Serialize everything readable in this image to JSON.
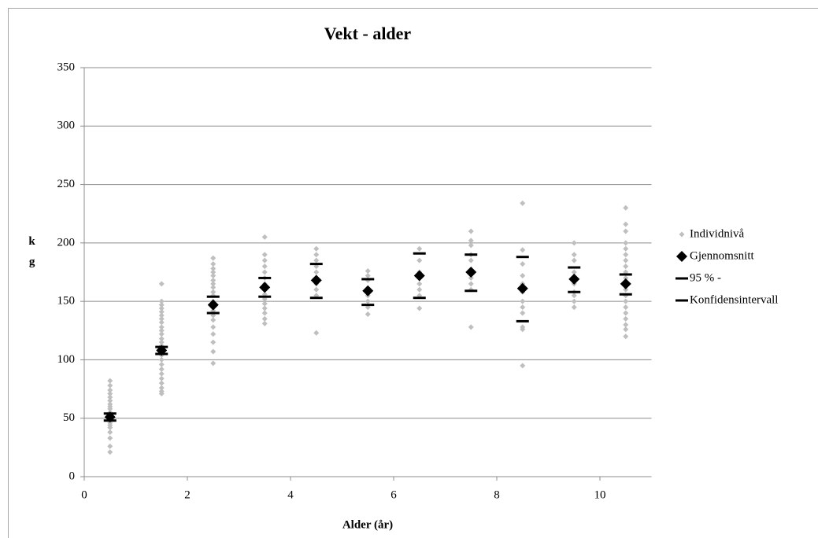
{
  "chart_data": {
    "type": "scatter",
    "title": "Vekt - alder",
    "xlabel": "Alder (år)",
    "ylabel": "kg",
    "xlim": [
      0,
      11
    ],
    "xticks": [
      0,
      2,
      4,
      6,
      8,
      10
    ],
    "ylim": [
      0,
      350
    ],
    "yticks": [
      0,
      50,
      100,
      150,
      200,
      250,
      300,
      350
    ],
    "grid": true,
    "legend": "right",
    "series": [
      {
        "name": "Individnivå",
        "color": "#bfbfbf",
        "marker": "diamond-small",
        "x": [
          0.5,
          0.5,
          0.5,
          0.5,
          0.5,
          0.5,
          0.5,
          0.5,
          0.5,
          0.5,
          0.5,
          0.5,
          0.5,
          0.5,
          0.5,
          0.5,
          0.5,
          0.5,
          0.5,
          0.5,
          1.5,
          1.5,
          1.5,
          1.5,
          1.5,
          1.5,
          1.5,
          1.5,
          1.5,
          1.5,
          1.5,
          1.5,
          1.5,
          1.5,
          1.5,
          1.5,
          1.5,
          1.5,
          1.5,
          1.5,
          1.5,
          1.5,
          1.5,
          1.5,
          1.5,
          2.5,
          2.5,
          2.5,
          2.5,
          2.5,
          2.5,
          2.5,
          2.5,
          2.5,
          2.5,
          2.5,
          2.5,
          2.5,
          2.5,
          2.5,
          2.5,
          2.5,
          2.5,
          2.5,
          2.5,
          3.5,
          3.5,
          3.5,
          3.5,
          3.5,
          3.5,
          3.5,
          3.5,
          3.5,
          3.5,
          3.5,
          3.5,
          3.5,
          3.5,
          3.5,
          4.5,
          4.5,
          4.5,
          4.5,
          4.5,
          4.5,
          4.5,
          4.5,
          4.5,
          4.5,
          5.5,
          5.5,
          5.5,
          5.5,
          5.5,
          5.5,
          5.5,
          5.5,
          6.5,
          6.5,
          6.5,
          6.5,
          6.5,
          6.5,
          6.5,
          7.5,
          7.5,
          7.5,
          7.5,
          7.5,
          7.5,
          7.5,
          7.5,
          7.5,
          7.5,
          8.5,
          8.5,
          8.5,
          8.5,
          8.5,
          8.5,
          8.5,
          8.5,
          8.5,
          8.5,
          8.5,
          8.5,
          9.5,
          9.5,
          9.5,
          9.5,
          9.5,
          9.5,
          9.5,
          9.5,
          9.5,
          9.5,
          10.5,
          10.5,
          10.5,
          10.5,
          10.5,
          10.5,
          10.5,
          10.5,
          10.5,
          10.5,
          10.5,
          10.5,
          10.5,
          10.5,
          10.5,
          10.5,
          10.5,
          10.5,
          10.5,
          10.5
        ],
        "values": [
          82,
          78,
          74,
          71,
          68,
          65,
          62,
          60,
          58,
          55,
          53,
          50,
          48,
          46,
          44,
          42,
          38,
          33,
          26,
          21,
          165,
          150,
          147,
          144,
          141,
          138,
          135,
          132,
          128,
          125,
          122,
          118,
          115,
          112,
          108,
          104,
          100,
          96,
          92,
          88,
          84,
          80,
          76,
          73,
          71,
          187,
          182,
          178,
          175,
          172,
          168,
          165,
          162,
          158,
          155,
          150,
          146,
          142,
          138,
          134,
          128,
          122,
          115,
          107,
          97,
          205,
          190,
          185,
          180,
          175,
          170,
          165,
          160,
          156,
          152,
          148,
          144,
          140,
          135,
          131,
          195,
          190,
          185,
          180,
          175,
          170,
          165,
          160,
          155,
          123,
          176,
          172,
          168,
          160,
          155,
          150,
          145,
          139,
          195,
          185,
          175,
          165,
          160,
          155,
          144,
          210,
          202,
          198,
          190,
          185,
          175,
          170,
          165,
          160,
          128,
          234,
          194,
          182,
          172,
          165,
          158,
          150,
          145,
          140,
          128,
          126,
          95,
          200,
          190,
          185,
          175,
          170,
          165,
          158,
          155,
          150,
          145,
          230,
          216,
          210,
          200,
          195,
          190,
          185,
          180,
          175,
          170,
          165,
          160,
          155,
          150,
          145,
          140,
          135,
          130,
          126,
          120
        ]
      },
      {
        "name": "Gjennomsnitt",
        "color": "#000000",
        "marker": "diamond",
        "x": [
          0.5,
          1.5,
          2.5,
          3.5,
          4.5,
          5.5,
          6.5,
          7.5,
          8.5,
          9.5,
          10.5
        ],
        "values": [
          51,
          108,
          147,
          162,
          168,
          159,
          172,
          175,
          161,
          169,
          165
        ]
      },
      {
        "name": "95 % -",
        "color": "#000000",
        "marker": "dash",
        "x": [
          0.5,
          1.5,
          2.5,
          3.5,
          4.5,
          5.5,
          6.5,
          7.5,
          8.5,
          9.5,
          10.5
        ],
        "values": [
          54,
          111,
          154,
          170,
          182,
          169,
          191,
          190,
          188,
          179,
          173
        ]
      },
      {
        "name": "Konfidensintervall",
        "color": "#000000",
        "marker": "dash",
        "x": [
          0.5,
          1.5,
          2.5,
          3.5,
          4.5,
          5.5,
          6.5,
          7.5,
          8.5,
          9.5,
          10.5
        ],
        "values": [
          48,
          105,
          140,
          154,
          153,
          147,
          153,
          159,
          133,
          158,
          156
        ]
      }
    ]
  }
}
